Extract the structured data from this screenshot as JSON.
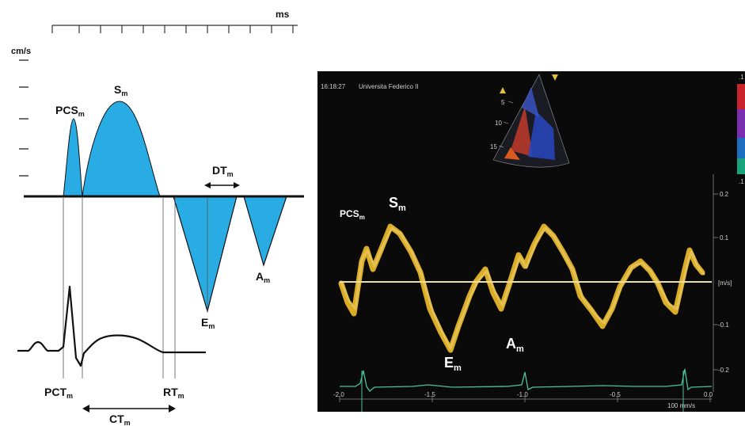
{
  "left": {
    "ms_label": "ms",
    "cms_label": "cm/s",
    "pcs": {
      "main": "PCS",
      "sub": "m"
    },
    "s": {
      "main": "S",
      "sub": "m"
    },
    "dt": {
      "main": "DT",
      "sub": "m"
    },
    "e": {
      "main": "E",
      "sub": "m"
    },
    "a": {
      "main": "A",
      "sub": "m"
    },
    "pct": {
      "main": "PCT",
      "sub": "m"
    },
    "rt": {
      "main": "RT",
      "sub": "m"
    },
    "ct": {
      "main": "CT",
      "sub": "m"
    },
    "fill_color": "#29ace4"
  },
  "right": {
    "timestamp": "16:18:27",
    "institution": "Universita Federico II",
    "pcs": {
      "main": "PCS",
      "sub": "m"
    },
    "s": {
      "main": "S",
      "sub": "m"
    },
    "e": {
      "main": "E",
      "sub": "m"
    },
    "a": {
      "main": "A",
      "sub": "m"
    },
    "y_ticks": [
      "0.2",
      "0.1",
      "[m/s]",
      "-0.1",
      "-0.2"
    ],
    "x_ticks": [
      "-2.0",
      "-1.5",
      "-1.0",
      "-0.5",
      "0.0"
    ],
    "sector_depth_ticks": [
      "5",
      "10",
      "15"
    ],
    "colorbar_top": ".1",
    "colorbar_bottom": ".1",
    "sweep_label": "100 mm/s",
    "doppler_color": "#f2bf2a",
    "ecg_color": "#4bc39a",
    "baseline_color": "#e8e0a8"
  }
}
